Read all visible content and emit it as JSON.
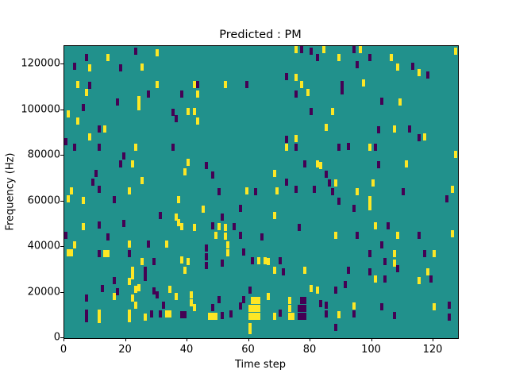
{
  "figure": {
    "title": "Predicted : PM",
    "xlabel": "Time step",
    "ylabel": "Frequency (Hz)"
  },
  "chart_data": {
    "type": "heatmap",
    "title": "Predicted : PM",
    "xlabel": "Time step",
    "ylabel": "Frequency (Hz)",
    "xlim": [
      0,
      128
    ],
    "ylim": [
      0,
      128000
    ],
    "xticks": [
      0,
      20,
      40,
      60,
      80,
      100,
      120
    ],
    "yticks": [
      0,
      20000,
      40000,
      60000,
      80000,
      100000,
      120000
    ],
    "grid": false,
    "legend": "none",
    "colors": {
      "background": "#21918c",
      "low": "#440154",
      "high": "#fde725"
    },
    "point_format": "[time_step, frequency_hz, class] where class h=high(yellow) l=low(dark-purple)",
    "points": [
      [
        23,
        125900,
        "l"
      ],
      [
        30,
        124900,
        "h"
      ],
      [
        7,
        123100,
        "l"
      ],
      [
        14,
        122800,
        "h"
      ],
      [
        3,
        119100,
        "l"
      ],
      [
        8,
        118500,
        "h"
      ],
      [
        18,
        118500,
        "l"
      ],
      [
        25,
        118800,
        "h"
      ],
      [
        4,
        111000,
        "h"
      ],
      [
        8,
        110700,
        "l"
      ],
      [
        30,
        111200,
        "h"
      ],
      [
        42,
        111000,
        "h"
      ],
      [
        7,
        107500,
        "h"
      ],
      [
        27,
        106900,
        "l"
      ],
      [
        38,
        106900,
        "l"
      ],
      [
        24,
        104600,
        "h"
      ],
      [
        24,
        101500,
        "h"
      ],
      [
        17,
        103400,
        "l"
      ],
      [
        6,
        101100,
        "l"
      ],
      [
        1,
        98400,
        "h"
      ],
      [
        4,
        95300,
        "h"
      ],
      [
        35,
        98800,
        "l"
      ],
      [
        36,
        96100,
        "l"
      ],
      [
        40,
        99400,
        "h"
      ],
      [
        42,
        99400,
        "h"
      ],
      [
        11,
        91800,
        "l"
      ],
      [
        13,
        91800,
        "h"
      ],
      [
        8,
        88300,
        "h"
      ],
      [
        0,
        86000,
        "l"
      ],
      [
        75,
        126300,
        "h"
      ],
      [
        77,
        126600,
        "l"
      ],
      [
        80,
        125800,
        "l"
      ],
      [
        84,
        126600,
        "h"
      ],
      [
        82,
        122800,
        "l"
      ],
      [
        72,
        114700,
        "l"
      ],
      [
        75,
        114400,
        "h"
      ],
      [
        43,
        111000,
        "l"
      ],
      [
        52,
        111000,
        "h"
      ],
      [
        59,
        111000,
        "l"
      ],
      [
        77,
        111000,
        "h"
      ],
      [
        75,
        106900,
        "l"
      ],
      [
        79,
        107500,
        "h"
      ],
      [
        43,
        107100,
        "h"
      ],
      [
        80,
        99400,
        "l"
      ],
      [
        43,
        95300,
        "h"
      ],
      [
        85,
        92400,
        "h"
      ],
      [
        72,
        87200,
        "l"
      ],
      [
        75,
        87500,
        "h"
      ],
      [
        94,
        126300,
        "l"
      ],
      [
        96,
        126600,
        "h"
      ],
      [
        127,
        125800,
        "h"
      ],
      [
        89,
        122800,
        "h"
      ],
      [
        95,
        119700,
        "l"
      ],
      [
        99,
        122800,
        "l"
      ],
      [
        106,
        123100,
        "h"
      ],
      [
        108,
        118800,
        "h"
      ],
      [
        113,
        119100,
        "l"
      ],
      [
        115,
        116200,
        "h"
      ],
      [
        118,
        115400,
        "l"
      ],
      [
        90,
        111200,
        "l"
      ],
      [
        90,
        108400,
        "l"
      ],
      [
        97,
        111900,
        "h"
      ],
      [
        103,
        104000,
        "l"
      ],
      [
        109,
        103400,
        "h"
      ],
      [
        87,
        99400,
        "h"
      ],
      [
        102,
        91200,
        "l"
      ],
      [
        107,
        91500,
        "h"
      ],
      [
        112,
        91500,
        "l"
      ],
      [
        115,
        88000,
        "l"
      ],
      [
        117,
        88300,
        "h"
      ],
      [
        3,
        83500,
        "l"
      ],
      [
        11,
        83500,
        "l"
      ],
      [
        23,
        83800,
        "h"
      ],
      [
        35,
        83500,
        "l"
      ],
      [
        19,
        79700,
        "l"
      ],
      [
        18,
        76500,
        "l"
      ],
      [
        22,
        76200,
        "h"
      ],
      [
        40,
        76900,
        "h"
      ],
      [
        10,
        72200,
        "l"
      ],
      [
        39,
        73000,
        "h"
      ],
      [
        9,
        68400,
        "l"
      ],
      [
        11,
        65300,
        "l"
      ],
      [
        25,
        69000,
        "h"
      ],
      [
        2,
        64600,
        "h"
      ],
      [
        21,
        64600,
        "h"
      ],
      [
        1,
        61100,
        "h"
      ],
      [
        6,
        60300,
        "h"
      ],
      [
        16,
        60600,
        "l"
      ],
      [
        37,
        60600,
        "h"
      ],
      [
        31,
        53700,
        "l"
      ],
      [
        36,
        53000,
        "h"
      ],
      [
        37,
        50500,
        "h"
      ],
      [
        38,
        48700,
        "h"
      ],
      [
        42,
        48400,
        "h"
      ],
      [
        6,
        49000,
        "h"
      ],
      [
        11,
        49500,
        "l"
      ],
      [
        19,
        50200,
        "l"
      ],
      [
        14,
        44400,
        "l"
      ],
      [
        0,
        45200,
        "l"
      ],
      [
        72,
        83800,
        "h"
      ],
      [
        75,
        83500,
        "l"
      ],
      [
        46,
        75700,
        "l"
      ],
      [
        48,
        71500,
        "l"
      ],
      [
        68,
        72200,
        "h"
      ],
      [
        78,
        76200,
        "l"
      ],
      [
        82,
        76500,
        "h"
      ],
      [
        83,
        75700,
        "h"
      ],
      [
        85,
        71900,
        "l"
      ],
      [
        72,
        68400,
        "l"
      ],
      [
        50,
        64100,
        "l"
      ],
      [
        59,
        64600,
        "h"
      ],
      [
        62,
        64100,
        "l"
      ],
      [
        69,
        64600,
        "h"
      ],
      [
        75,
        65300,
        "l"
      ],
      [
        81,
        65300,
        "l"
      ],
      [
        45,
        56500,
        "h"
      ],
      [
        57,
        56800,
        "l"
      ],
      [
        68,
        53700,
        "h"
      ],
      [
        51,
        53000,
        "l"
      ],
      [
        48,
        49300,
        "l"
      ],
      [
        50,
        48700,
        "h"
      ],
      [
        52,
        48400,
        "h"
      ],
      [
        55,
        49000,
        "l"
      ],
      [
        49,
        44900,
        "h"
      ],
      [
        52,
        44600,
        "h"
      ],
      [
        57,
        45200,
        "l"
      ],
      [
        64,
        44400,
        "l"
      ],
      [
        76,
        48400,
        "l"
      ],
      [
        89,
        83800,
        "l"
      ],
      [
        92,
        84000,
        "l"
      ],
      [
        99,
        83800,
        "h"
      ],
      [
        101,
        83800,
        "l"
      ],
      [
        127,
        80600,
        "h"
      ],
      [
        102,
        75900,
        "l"
      ],
      [
        111,
        76200,
        "h"
      ],
      [
        86,
        68100,
        "l"
      ],
      [
        88,
        68100,
        "h"
      ],
      [
        87,
        64100,
        "l"
      ],
      [
        95,
        64100,
        "h"
      ],
      [
        100,
        68100,
        "h"
      ],
      [
        89,
        59900,
        "l"
      ],
      [
        110,
        64100,
        "l"
      ],
      [
        126,
        65300,
        "h"
      ],
      [
        124,
        60900,
        "l"
      ],
      [
        99,
        60600,
        "h"
      ],
      [
        99,
        57600,
        "h"
      ],
      [
        94,
        56800,
        "l"
      ],
      [
        101,
        49300,
        "h"
      ],
      [
        105,
        49300,
        "l"
      ],
      [
        88,
        45200,
        "h"
      ],
      [
        95,
        44900,
        "l"
      ],
      [
        108,
        45200,
        "h"
      ],
      [
        115,
        45200,
        "l"
      ],
      [
        126,
        45800,
        "h"
      ],
      [
        3,
        40900,
        "h"
      ],
      [
        21,
        41100,
        "h"
      ],
      [
        27,
        41100,
        "l"
      ],
      [
        33,
        41100,
        "h"
      ],
      [
        2,
        37400,
        "h"
      ],
      [
        1,
        37500,
        "h"
      ],
      [
        11,
        37200,
        "l"
      ],
      [
        13,
        37200,
        "h"
      ],
      [
        14,
        37200,
        "h"
      ],
      [
        21,
        37200,
        "l"
      ],
      [
        25,
        33700,
        "h"
      ],
      [
        29,
        33700,
        "l"
      ],
      [
        38,
        34200,
        "h"
      ],
      [
        40,
        33400,
        "h"
      ],
      [
        22,
        29900,
        "h"
      ],
      [
        22,
        27200,
        "h"
      ],
      [
        26,
        29600,
        "l"
      ],
      [
        26,
        26700,
        "l"
      ],
      [
        39,
        29900,
        "h"
      ],
      [
        16,
        25300,
        "l"
      ],
      [
        21,
        24900,
        "h"
      ],
      [
        23,
        21500,
        "h"
      ],
      [
        24,
        22200,
        "h"
      ],
      [
        12,
        21800,
        "l"
      ],
      [
        17,
        20300,
        "l"
      ],
      [
        16,
        18300,
        "h"
      ],
      [
        29,
        20600,
        "l"
      ],
      [
        30,
        18900,
        "l"
      ],
      [
        34,
        21500,
        "h"
      ],
      [
        36,
        18300,
        "h"
      ],
      [
        7,
        17500,
        "l"
      ],
      [
        7,
        8500,
        "l"
      ],
      [
        22,
        17700,
        "h"
      ],
      [
        23,
        14500,
        "h"
      ],
      [
        32,
        14500,
        "l"
      ],
      [
        7,
        10800,
        "l"
      ],
      [
        11,
        10800,
        "h"
      ],
      [
        11,
        8300,
        "h"
      ],
      [
        21,
        10800,
        "h"
      ],
      [
        21,
        8400,
        "h"
      ],
      [
        26,
        9200,
        "h"
      ],
      [
        28,
        10500,
        "l"
      ],
      [
        31,
        10500,
        "l"
      ],
      [
        33,
        10500,
        "h"
      ],
      [
        34,
        10500,
        "h"
      ],
      [
        38,
        10300,
        "l"
      ],
      [
        39,
        10300,
        "l"
      ],
      [
        41,
        19000,
        "h"
      ],
      [
        41,
        15500,
        "h"
      ],
      [
        42,
        13500,
        "h"
      ],
      [
        46,
        39500,
        "l"
      ],
      [
        46,
        35500,
        "l"
      ],
      [
        46,
        31700,
        "l"
      ],
      [
        53,
        40900,
        "h"
      ],
      [
        53,
        37400,
        "h"
      ],
      [
        51,
        32800,
        "l"
      ],
      [
        58,
        37700,
        "l"
      ],
      [
        61,
        34000,
        "l"
      ],
      [
        63,
        34000,
        "h"
      ],
      [
        65,
        34000,
        "h"
      ],
      [
        66,
        33700,
        "h"
      ],
      [
        70,
        34000,
        "l"
      ],
      [
        68,
        29900,
        "h"
      ],
      [
        71,
        29100,
        "l"
      ],
      [
        78,
        29900,
        "h"
      ],
      [
        80,
        21800,
        "h"
      ],
      [
        82,
        20900,
        "h"
      ],
      [
        60,
        20900,
        "l"
      ],
      [
        58,
        17000,
        "l"
      ],
      [
        57,
        14000,
        "l"
      ],
      [
        54,
        10500,
        "l"
      ],
      [
        51,
        10000,
        "l"
      ],
      [
        50,
        16700,
        "l"
      ],
      [
        48,
        13300,
        "l"
      ],
      [
        47,
        9500,
        "h"
      ],
      [
        48,
        9500,
        "h"
      ],
      [
        49,
        9500,
        "h"
      ],
      [
        60,
        13000,
        "h"
      ],
      [
        60,
        9500,
        "h"
      ],
      [
        61,
        16500,
        "h"
      ],
      [
        61,
        13000,
        "h"
      ],
      [
        61,
        9500,
        "h"
      ],
      [
        62,
        16500,
        "h"
      ],
      [
        62,
        13000,
        "h"
      ],
      [
        62,
        9500,
        "h"
      ],
      [
        63,
        16500,
        "h"
      ],
      [
        63,
        13000,
        "h"
      ],
      [
        63,
        9500,
        "h"
      ],
      [
        60,
        5200,
        "h"
      ],
      [
        60,
        3400,
        "h"
      ],
      [
        66,
        18100,
        "h"
      ],
      [
        73,
        16500,
        "h"
      ],
      [
        73,
        13000,
        "h"
      ],
      [
        73,
        9500,
        "h"
      ],
      [
        70,
        11000,
        "l"
      ],
      [
        68,
        9600,
        "h"
      ],
      [
        74,
        9400,
        "h"
      ],
      [
        76,
        13000,
        "l"
      ],
      [
        76,
        9500,
        "l"
      ],
      [
        77,
        16500,
        "l"
      ],
      [
        77,
        13000,
        "l"
      ],
      [
        77,
        9500,
        "l"
      ],
      [
        78,
        16500,
        "l"
      ],
      [
        78,
        13000,
        "l"
      ],
      [
        78,
        9500,
        "l"
      ],
      [
        85,
        14500,
        "l"
      ],
      [
        83,
        15200,
        "l"
      ],
      [
        103,
        40700,
        "l"
      ],
      [
        99,
        36900,
        "l"
      ],
      [
        107,
        37000,
        "h"
      ],
      [
        107,
        33000,
        "h"
      ],
      [
        104,
        33400,
        "l"
      ],
      [
        117,
        37200,
        "l"
      ],
      [
        120,
        37200,
        "h"
      ],
      [
        108,
        30500,
        "l"
      ],
      [
        92,
        29600,
        "l"
      ],
      [
        91,
        23500,
        "l"
      ],
      [
        99,
        29100,
        "l"
      ],
      [
        101,
        25800,
        "h"
      ],
      [
        104,
        25800,
        "l"
      ],
      [
        118,
        29100,
        "h"
      ],
      [
        119,
        25800,
        "l"
      ],
      [
        115,
        25300,
        "h"
      ],
      [
        88,
        21200,
        "l"
      ],
      [
        94,
        14000,
        "h"
      ],
      [
        103,
        13700,
        "l"
      ],
      [
        85,
        10500,
        "l"
      ],
      [
        89,
        10200,
        "h"
      ],
      [
        94,
        10500,
        "l"
      ],
      [
        107,
        9800,
        "l"
      ],
      [
        120,
        13700,
        "h"
      ],
      [
        125,
        14300,
        "l"
      ],
      [
        125,
        9300,
        "l"
      ],
      [
        88,
        4800,
        "l"
      ]
    ]
  }
}
